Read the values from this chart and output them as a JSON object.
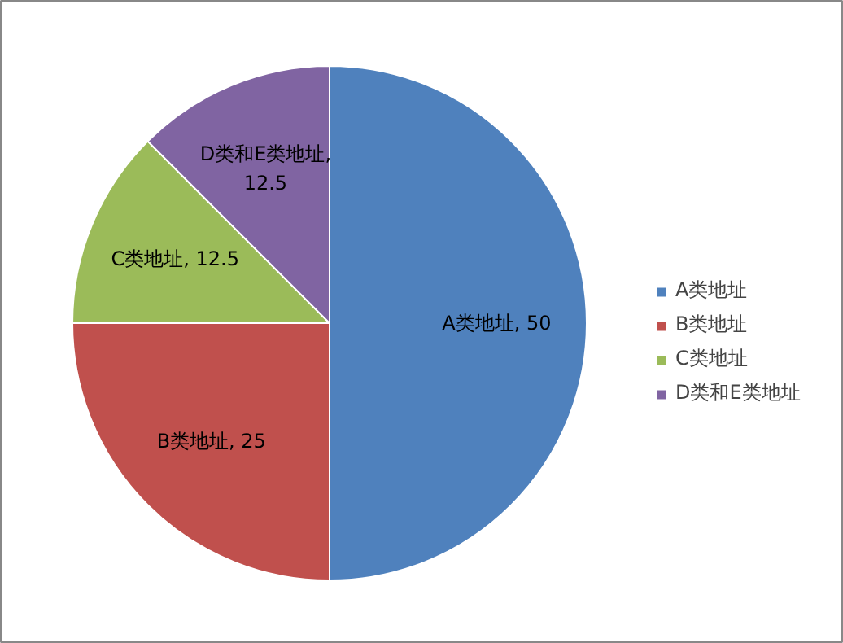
{
  "chart_data": {
    "type": "pie",
    "categories": [
      "A类地址",
      "B类地址",
      "C类地址",
      "D类和E类地址"
    ],
    "values": [
      50,
      25,
      12.5,
      12.5
    ],
    "colors": [
      "#4f81bd",
      "#c0504d",
      "#9bbb59",
      "#8064a2"
    ],
    "value_labels": [
      "A类地址, 50",
      "B类地址, 25",
      "C类地址, 12.5",
      "D类和E类地址, 12.5"
    ],
    "legend": "right"
  }
}
